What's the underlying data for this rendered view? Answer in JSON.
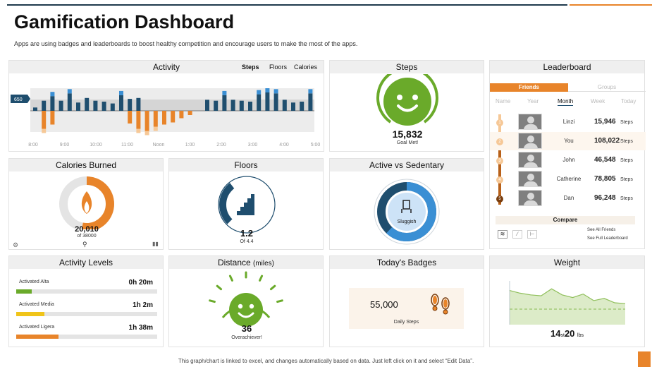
{
  "header": {
    "title": "Gamification Dashboard",
    "subtitle": "Apps are using badges and leaderboards  to boost healthy competition and encourage  users to make the most of the apps."
  },
  "colors": {
    "navy": "#1f4e6e",
    "blue": "#3a8fd4",
    "orange": "#e8842a",
    "green": "#6aaa2a",
    "yellow": "#f0c419",
    "gray": "#d9d9d9"
  },
  "activity": {
    "title": "Activity",
    "tabs": [
      "Steps",
      "Floors",
      "Calories"
    ],
    "marker": "650",
    "x_labels": [
      "8:00",
      "9:00",
      "10:00",
      "11:00",
      "Noon",
      "1:00",
      "2:00",
      "3:00",
      "4:00",
      "5:00"
    ],
    "up_values": [
      0.18,
      0.55,
      0.8,
      0.55,
      0.95,
      0.45,
      0.7,
      0.55,
      0.5,
      0.4,
      0.85,
      0.65,
      0.7,
      0.0,
      0.0,
      0.0,
      0.0,
      0.0,
      0.0,
      0.0,
      0.6,
      0.55,
      0.85,
      0.6,
      0.55,
      0.5,
      0.9,
      1.0,
      0.95,
      0.6,
      0.45,
      0.5,
      0.95
    ],
    "down_values": [
      0.0,
      0.85,
      0.65,
      0.0,
      0.0,
      0.0,
      0.0,
      0.0,
      0.0,
      0.0,
      0.0,
      0.6,
      0.85,
      0.95,
      0.75,
      0.65,
      0.55,
      0.35,
      0.2,
      0.0,
      0.0,
      0.0,
      0.0,
      0.0,
      0.0,
      0.0,
      0.0,
      0.0,
      0.0,
      0.0,
      0.0,
      0.0,
      0.0
    ]
  },
  "steps": {
    "title": "Steps",
    "value": "15,832",
    "caption": "Goal Met!"
  },
  "calories": {
    "title": "Calories Burned",
    "value": "20,010",
    "of": "of 38000",
    "progress": 0.53
  },
  "floors": {
    "title": "Floors",
    "value": "1.2",
    "of": "Of 4.4",
    "progress": 0.27
  },
  "active": {
    "title": "Active vs Sedentary",
    "caption": "Sluggish",
    "progress": 0.62
  },
  "leaderboard": {
    "title": "Leaderboard",
    "tabs": [
      "Friends",
      "Groups"
    ],
    "periods": [
      "Name",
      "Year",
      "Month",
      "Week",
      "Today"
    ],
    "rows": [
      {
        "rank": "1",
        "name": "Linzi",
        "steps": "15,946",
        "unit": "Steps"
      },
      {
        "rank": "2",
        "name": "You",
        "steps": "108,022",
        "unit": "Steps"
      },
      {
        "rank": "3",
        "name": "John",
        "steps": "46,548",
        "unit": "Steps"
      },
      {
        "rank": "4",
        "name": "Catherine",
        "steps": "78,805",
        "unit": "Steps"
      },
      {
        "rank": "5",
        "name": "Dan",
        "steps": "96,248",
        "unit": "Steps"
      }
    ],
    "compare": "Compare",
    "see_friends": "See All Friends",
    "see_leaderboard": "See Full Leaderboard"
  },
  "activity_levels": {
    "title": "Activity Levels",
    "items": [
      {
        "label": "Activated Alta",
        "value": "0h 20m",
        "fraction": 0.11,
        "color": "#6aaa2a"
      },
      {
        "label": "Activated Media",
        "value": "1h 2m",
        "fraction": 0.2,
        "color": "#f0c419"
      },
      {
        "label": "Activated Ligera",
        "value": "1h 38m",
        "fraction": 0.3,
        "color": "#e8842a"
      }
    ]
  },
  "distance": {
    "title": "Distance",
    "unit": "(miles)",
    "value": "36",
    "caption": "Overachiever!"
  },
  "badges": {
    "title": "Today's Badges",
    "value": "55,000",
    "caption": "Daily Steps"
  },
  "weight": {
    "title": "Weight",
    "value": "14",
    "unit1": "st",
    "value2": "20",
    "unit2": "lbs",
    "series": [
      0.78,
      0.72,
      0.68,
      0.66,
      0.82,
      0.68,
      0.62,
      0.7,
      0.55,
      0.6,
      0.5,
      0.48
    ]
  },
  "footer": "This graph/chart is linked to excel, and changes automatically based on data. Just left click on it and select “Edit Data”."
}
